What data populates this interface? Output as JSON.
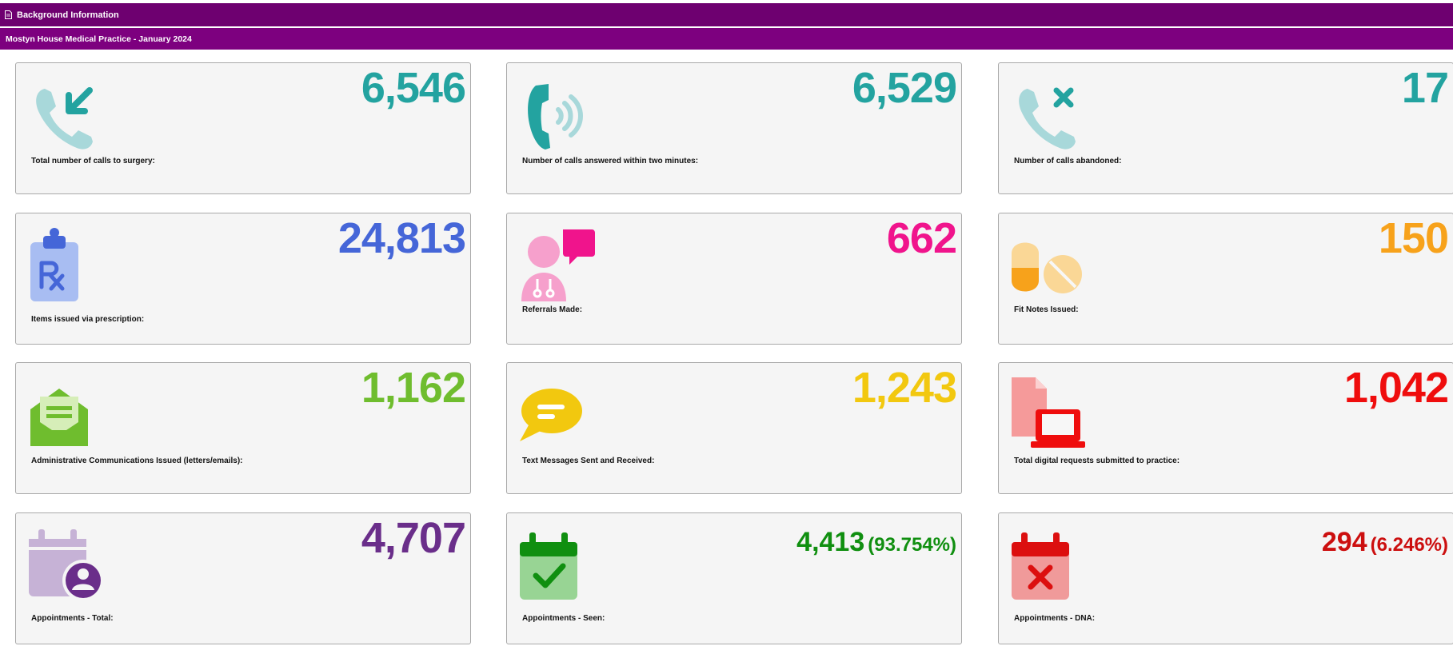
{
  "header": {
    "section_title": "Background Information",
    "subtitle": "Mostyn House Medical Practice - January 2024"
  },
  "colors": {
    "header_bg": "#6e0070",
    "subheader_bg": "#7d007f",
    "teal": "#23a3a0",
    "blue": "#4566d8",
    "pink": "#f0148c",
    "orange": "#f7a21b",
    "green_light": "#6fbd2e",
    "yellow": "#f2c80f",
    "red": "#ef0d0d",
    "purple": "#6a2e8a",
    "green_dark": "#108f10",
    "red_dark": "#cc0f0f"
  },
  "cards": [
    {
      "icon": "phone-incoming-icon",
      "value": "6,546",
      "label": "Total number of calls to surgery:"
    },
    {
      "icon": "phone-ringing-icon",
      "value": "6,529",
      "label": "Number of calls answered within two minutes:"
    },
    {
      "icon": "phone-missed-icon",
      "value": "17",
      "label": "Number of calls abandoned:"
    },
    {
      "icon": "prescription-clipboard-icon",
      "value": "24,813",
      "label": "Items issued via prescription:"
    },
    {
      "icon": "doctor-referral-icon",
      "value": "662",
      "label": "Referrals Made:"
    },
    {
      "icon": "pills-icon",
      "value": "150",
      "label": "Fit Notes Issued:"
    },
    {
      "icon": "open-envelope-icon",
      "value": "1,162",
      "label": "Administrative Communications Issued (letters/emails):"
    },
    {
      "icon": "chat-bubble-icon",
      "value": "1,243",
      "label": "Text Messages Sent and Received:"
    },
    {
      "icon": "digital-request-icon",
      "value": "1,042",
      "label": "Total digital requests submitted to practice:"
    },
    {
      "icon": "calendar-user-icon",
      "value": "4,707",
      "label": "Appointments - Total:"
    },
    {
      "icon": "calendar-check-icon",
      "value": "4,413",
      "percent": "(93.754%)",
      "label": "Appointments - Seen:"
    },
    {
      "icon": "calendar-cross-icon",
      "value": "294",
      "percent": "(6.246%)",
      "label": "Appointments - DNA:"
    }
  ]
}
